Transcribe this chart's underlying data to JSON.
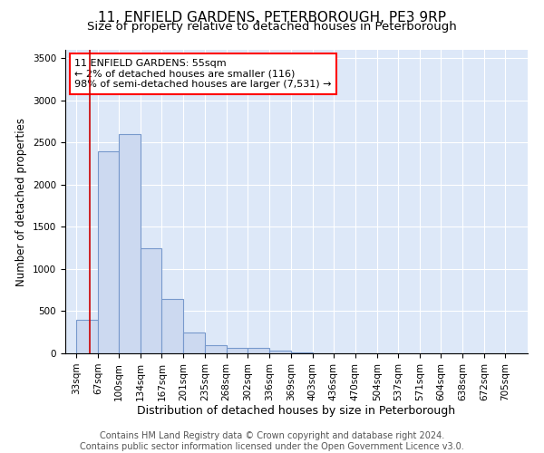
{
  "title": "11, ENFIELD GARDENS, PETERBOROUGH, PE3 9RP",
  "subtitle": "Size of property relative to detached houses in Peterborough",
  "xlabel": "Distribution of detached houses by size in Peterborough",
  "ylabel": "Number of detached properties",
  "footer_line1": "Contains HM Land Registry data © Crown copyright and database right 2024.",
  "footer_line2": "Contains public sector information licensed under the Open Government Licence v3.0.",
  "bar_edges": [
    33,
    67,
    100,
    134,
    167,
    201,
    235,
    268,
    302,
    336,
    369,
    403,
    436,
    470,
    504,
    537,
    571,
    604,
    638,
    672,
    705
  ],
  "bar_heights": [
    400,
    2400,
    2600,
    1250,
    650,
    250,
    100,
    60,
    60,
    30,
    10,
    0,
    0,
    0,
    0,
    0,
    0,
    0,
    0,
    0,
    0
  ],
  "bar_color": "#ccd9f0",
  "bar_edge_color": "#7799cc",
  "bar_linewidth": 0.8,
  "red_line_x": 55,
  "red_line_color": "#cc0000",
  "annotation_text": "11 ENFIELD GARDENS: 55sqm\n← 2% of detached houses are smaller (116)\n98% of semi-detached houses are larger (7,531) →",
  "ylim": [
    0,
    3600
  ],
  "xlim": [
    16,
    740
  ],
  "background_color": "#dde8f8",
  "grid_color": "#ffffff",
  "title_fontsize": 11,
  "subtitle_fontsize": 9.5,
  "tick_fontsize": 7.5,
  "ylabel_fontsize": 8.5,
  "xlabel_fontsize": 9,
  "annotation_fontsize": 8,
  "footer_fontsize": 7
}
